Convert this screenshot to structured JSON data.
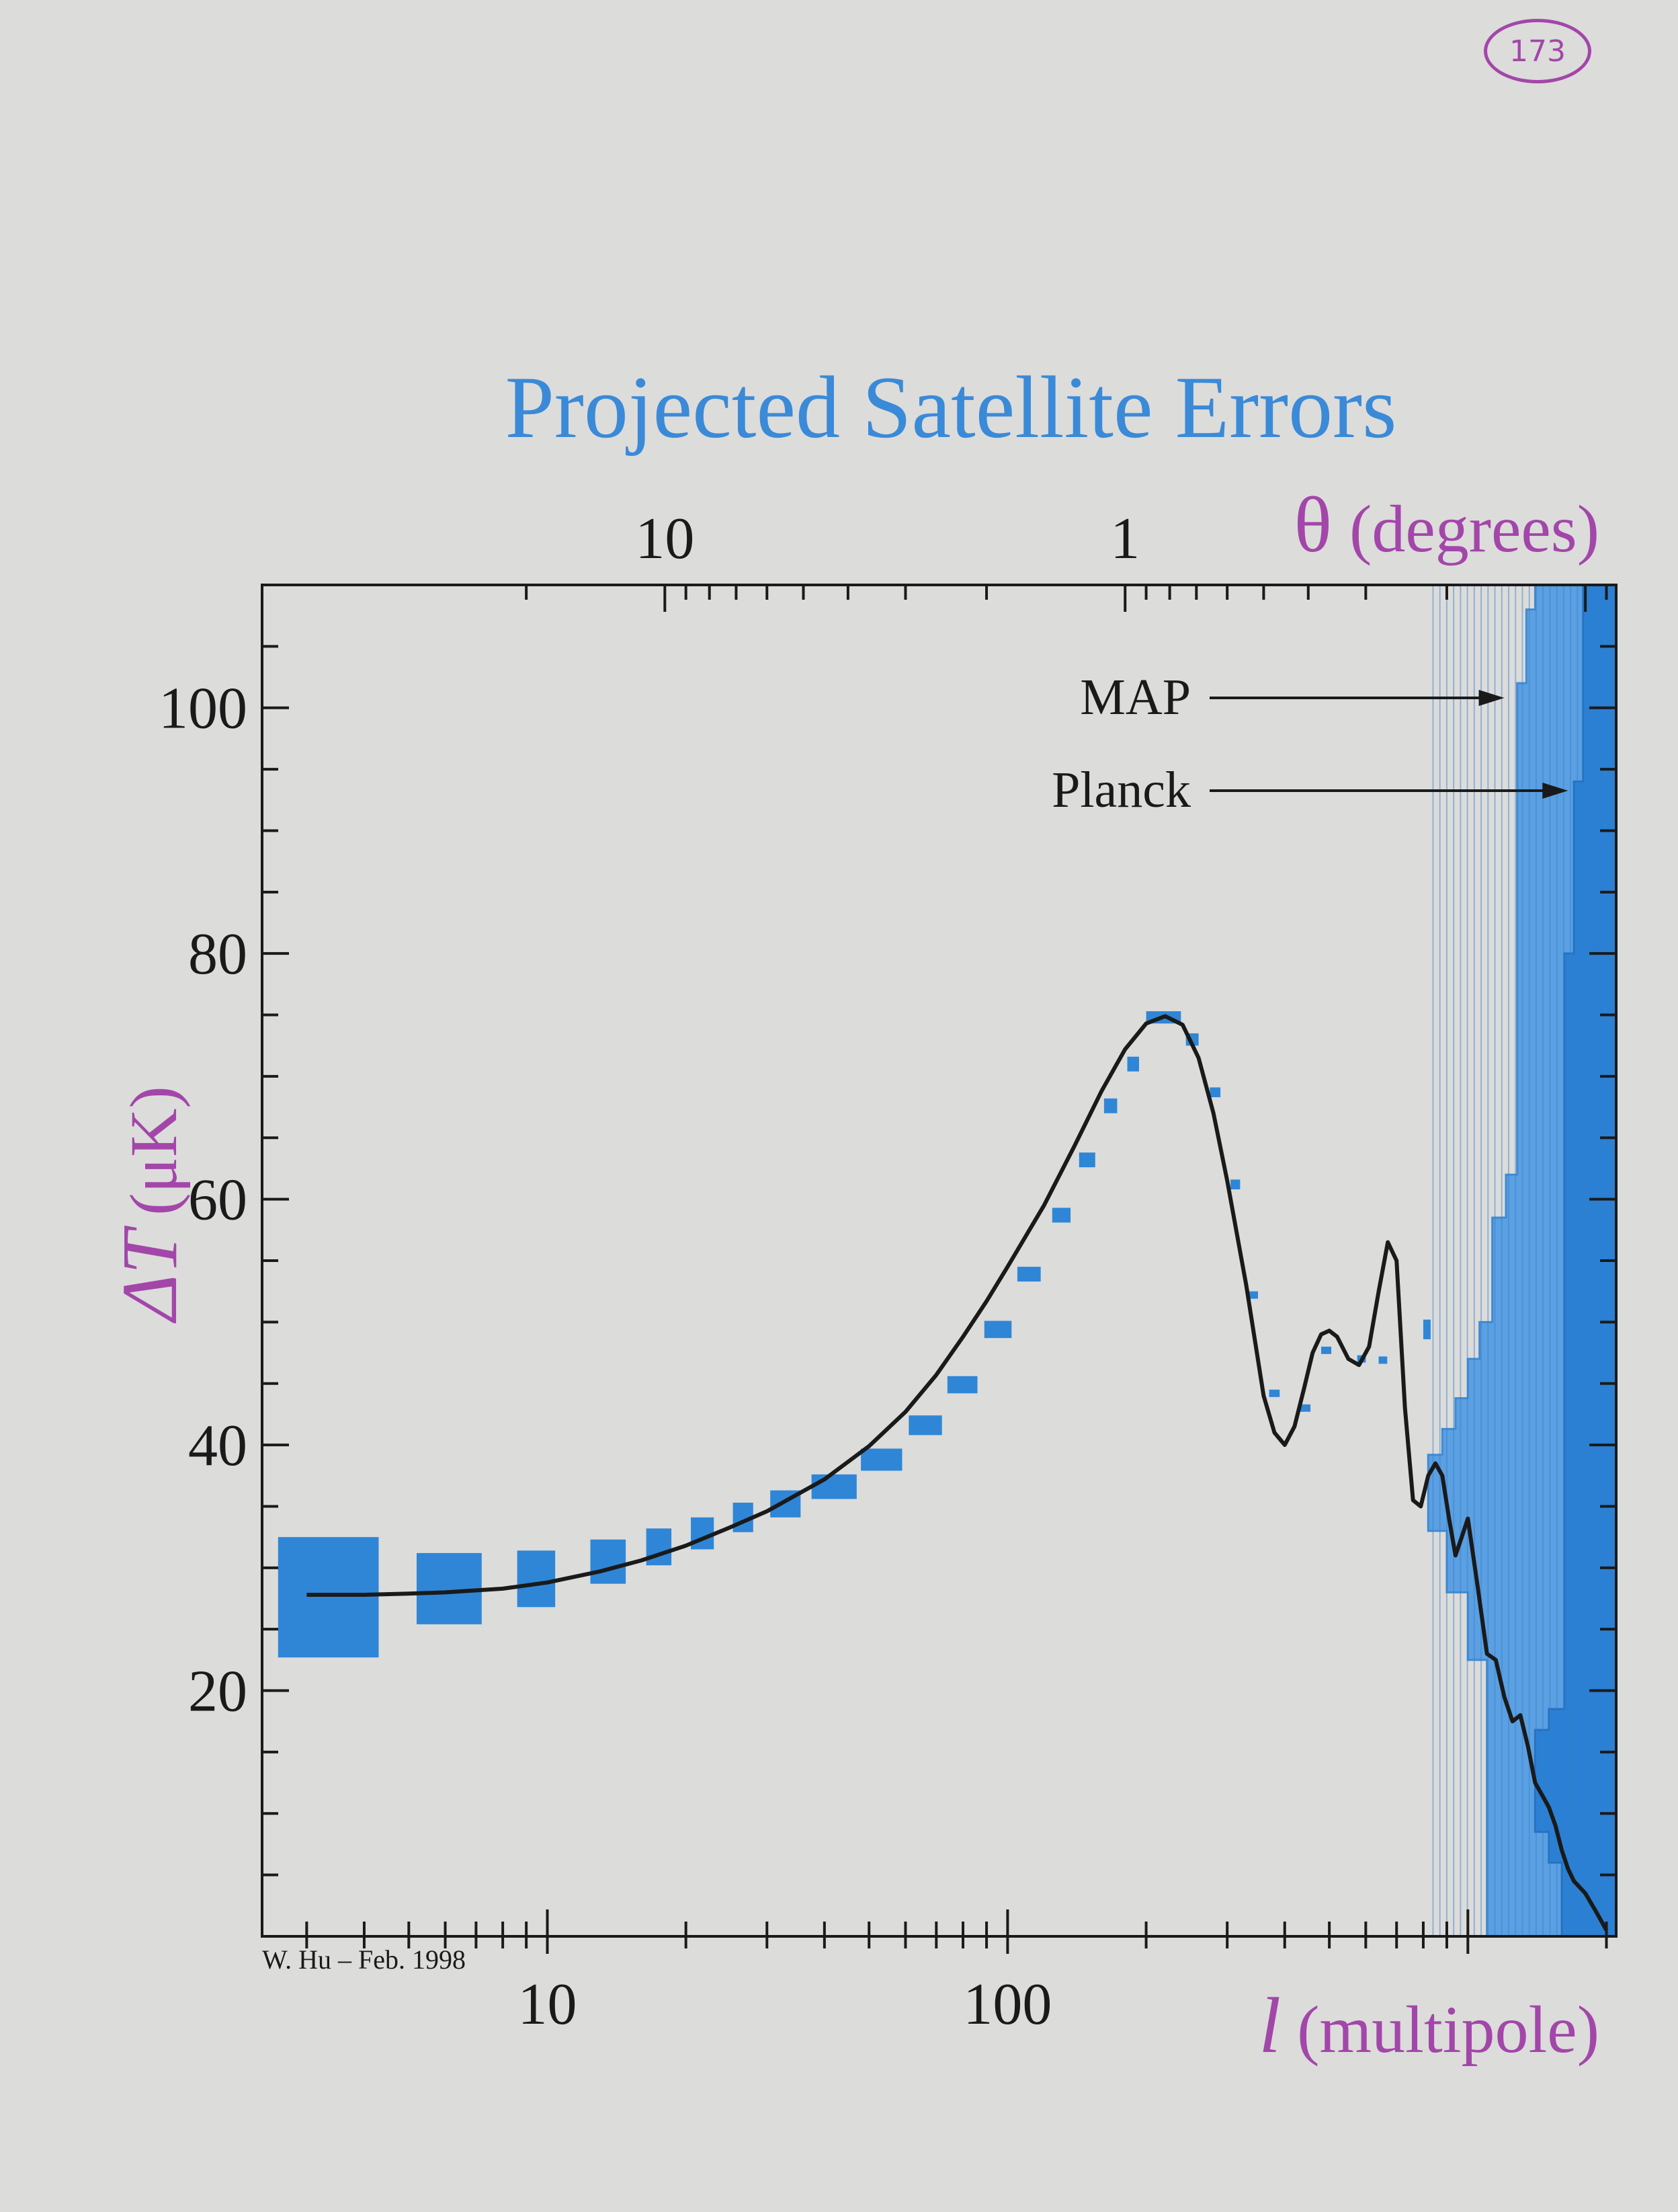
{
  "page_number": "173",
  "credit": "W. Hu – Feb. 1998",
  "colors": {
    "title": "#3a8ad8",
    "axis_title": "#a346a9",
    "data_box": "#2f86d6",
    "map_band": "#5aa0e2",
    "planck_band": "#2a80d4",
    "curve": "#1a1a1a"
  },
  "chart_data": {
    "type": "line",
    "title": "Projected Satellite Errors",
    "xlabel_symbol": "l",
    "xlabel_text": "(multipole)",
    "ylabel_symbol": "ΔT",
    "ylabel_text": "(μK)",
    "top_axis_symbol": "θ",
    "top_axis_text": "(degrees)",
    "xscale": "log",
    "xlim": [
      2.4,
      2100
    ],
    "ylim": [
      0,
      110
    ],
    "x_ticks": [
      10,
      100
    ],
    "x_tick_labels": [
      "10",
      "100"
    ],
    "y_ticks": [
      20,
      40,
      60,
      80,
      100
    ],
    "y_tick_labels": [
      "20",
      "40",
      "60",
      "80",
      "100"
    ],
    "top_ticks": [
      {
        "deg": 10,
        "label": "10"
      },
      {
        "deg": 1,
        "label": "1"
      }
    ],
    "annotations": [
      {
        "text": "MAP",
        "target_l": 1200,
        "target_dT": 95
      },
      {
        "text": "Planck",
        "target_l": 1650,
        "target_dT": 92
      }
    ],
    "theory_curve": {
      "l": [
        3,
        4,
        5,
        6,
        8,
        10,
        13,
        16,
        20,
        25,
        30,
        40,
        50,
        60,
        70,
        80,
        90,
        100,
        120,
        140,
        160,
        180,
        200,
        220,
        240,
        260,
        280,
        300,
        330,
        360,
        380,
        400,
        420,
        440,
        460,
        480,
        500,
        520,
        550,
        580,
        610,
        640,
        670,
        700,
        730,
        760,
        790,
        820,
        850,
        880,
        910,
        940,
        970,
        1000,
        1050,
        1100,
        1150,
        1200,
        1250,
        1300,
        1350,
        1400,
        1450,
        1500,
        1550,
        1600,
        1650,
        1700,
        1800,
        1900,
        2000
      ],
      "dT": [
        27.8,
        27.8,
        27.9,
        28.0,
        28.3,
        28.8,
        29.7,
        30.6,
        31.8,
        33.3,
        34.6,
        37.2,
        39.9,
        42.7,
        45.7,
        48.8,
        51.7,
        54.5,
        59.5,
        64.4,
        68.8,
        72.2,
        74.3,
        74.9,
        74.2,
        71.5,
        67.0,
        61.5,
        53.0,
        44.0,
        41.0,
        40.0,
        41.5,
        44.5,
        47.5,
        49.0,
        49.3,
        48.8,
        47.0,
        46.5,
        48.0,
        52.5,
        56.5,
        55.0,
        43.0,
        35.5,
        35.0,
        37.5,
        38.5,
        37.5,
        34.0,
        31.0,
        32.5,
        34.0,
        28.5,
        23.0,
        22.5,
        19.5,
        17.5,
        18.0,
        15.5,
        12.5,
        11.5,
        10.5,
        9.0,
        7.0,
        5.5,
        4.5,
        3.5,
        2.0,
        0.5
      ]
    },
    "data_boxes": [
      {
        "l_lo": 2.6,
        "l_hi": 4.3,
        "dT": 27.6,
        "err": 4.9
      },
      {
        "l_lo": 5.2,
        "l_hi": 7.2,
        "dT": 28.3,
        "err": 2.9
      },
      {
        "l_lo": 8.6,
        "l_hi": 10.4,
        "dT": 29.1,
        "err": 2.3
      },
      {
        "l_lo": 12.4,
        "l_hi": 14.8,
        "dT": 30.5,
        "err": 1.8
      },
      {
        "l_lo": 16.4,
        "l_hi": 18.6,
        "dT": 31.7,
        "err": 1.5
      },
      {
        "l_lo": 20.5,
        "l_hi": 23.0,
        "dT": 32.8,
        "err": 1.3
      },
      {
        "l_lo": 25.3,
        "l_hi": 28.0,
        "dT": 34.1,
        "err": 1.2
      },
      {
        "l_lo": 30.5,
        "l_hi": 35.5,
        "dT": 35.2,
        "err": 1.1
      },
      {
        "l_lo": 37.5,
        "l_hi": 47.0,
        "dT": 36.6,
        "err": 1.0
      },
      {
        "l_lo": 48.0,
        "l_hi": 59.0,
        "dT": 38.8,
        "err": 0.9
      },
      {
        "l_lo": 61.0,
        "l_hi": 72.0,
        "dT": 41.6,
        "err": 0.8
      },
      {
        "l_lo": 74.0,
        "l_hi": 86.0,
        "dT": 44.9,
        "err": 0.7
      },
      {
        "l_lo": 89.0,
        "l_hi": 102.0,
        "dT": 49.4,
        "err": 0.7
      },
      {
        "l_lo": 105.0,
        "l_hi": 118.0,
        "dT": 53.9,
        "err": 0.6
      },
      {
        "l_lo": 125.0,
        "l_hi": 137.0,
        "dT": 58.7,
        "err": 0.6
      },
      {
        "l_lo": 143.0,
        "l_hi": 155.0,
        "dT": 63.2,
        "err": 0.6
      },
      {
        "l_lo": 162.0,
        "l_hi": 173.0,
        "dT": 67.6,
        "err": 0.6
      },
      {
        "l_lo": 182.0,
        "l_hi": 193.0,
        "dT": 71.0,
        "err": 0.6
      },
      {
        "l_lo": 200.0,
        "l_hi": 238.0,
        "dT": 74.8,
        "err": 0.5
      },
      {
        "l_lo": 244.0,
        "l_hi": 260.0,
        "dT": 73.0,
        "err": 0.5
      },
      {
        "l_lo": 275.0,
        "l_hi": 290.0,
        "dT": 68.7,
        "err": 0.4
      },
      {
        "l_lo": 305.0,
        "l_hi": 320.0,
        "dT": 61.2,
        "err": 0.4
      },
      {
        "l_lo": 335.0,
        "l_hi": 350.0,
        "dT": 52.2,
        "err": 0.3
      },
      {
        "l_lo": 370.0,
        "l_hi": 390.0,
        "dT": 44.2,
        "err": 0.3
      },
      {
        "l_lo": 430.0,
        "l_hi": 455.0,
        "dT": 43.0,
        "err": 0.3
      },
      {
        "l_lo": 480.0,
        "l_hi": 505.0,
        "dT": 47.7,
        "err": 0.3
      },
      {
        "l_lo": 575.0,
        "l_hi": 600.0,
        "dT": 47.0,
        "err": 0.3
      },
      {
        "l_lo": 640.0,
        "l_hi": 668.0,
        "dT": 46.9,
        "err": 0.3
      },
      {
        "l_lo": 800.0,
        "l_hi": 830.0,
        "dT": 49.4,
        "err": 0.8
      }
    ],
    "map_band": [
      {
        "l": 820,
        "top": 39.2
      },
      {
        "l": 880,
        "top": 41.3
      },
      {
        "l": 940,
        "top": 43.8
      },
      {
        "l": 1000,
        "top": 47.0
      },
      {
        "l": 1060,
        "top": 50.0
      },
      {
        "l": 1130,
        "top": 58.5
      },
      {
        "l": 1210,
        "top": 62.0
      },
      {
        "l": 1280,
        "top": 102.0
      },
      {
        "l": 1340,
        "top": 108.0
      },
      {
        "l": 1400,
        "top": 110.0
      },
      {
        "l": 2100,
        "top": 110.0
      }
    ],
    "map_band_bottom": [
      {
        "l": 820,
        "bottom": 34.5
      },
      {
        "l": 900,
        "bottom": 33.0
      },
      {
        "l": 1000,
        "bottom": 28.0
      },
      {
        "l": 1100,
        "bottom": 22.5
      },
      {
        "l": 1130,
        "bottom": 0
      }
    ],
    "planck_band": [
      {
        "l": 1400,
        "top": 16.8
      },
      {
        "l": 1500,
        "top": 18.5
      },
      {
        "l": 1620,
        "top": 80.0
      },
      {
        "l": 1700,
        "top": 94.0
      },
      {
        "l": 1780,
        "top": 110.0
      },
      {
        "l": 2100,
        "top": 110.0
      }
    ],
    "planck_band_bottom": [
      {
        "l": 1400,
        "bottom": 9.0
      },
      {
        "l": 1500,
        "bottom": 8.5
      },
      {
        "l": 1600,
        "bottom": 6.0
      },
      {
        "l": 1700,
        "bottom": 0
      }
    ]
  }
}
